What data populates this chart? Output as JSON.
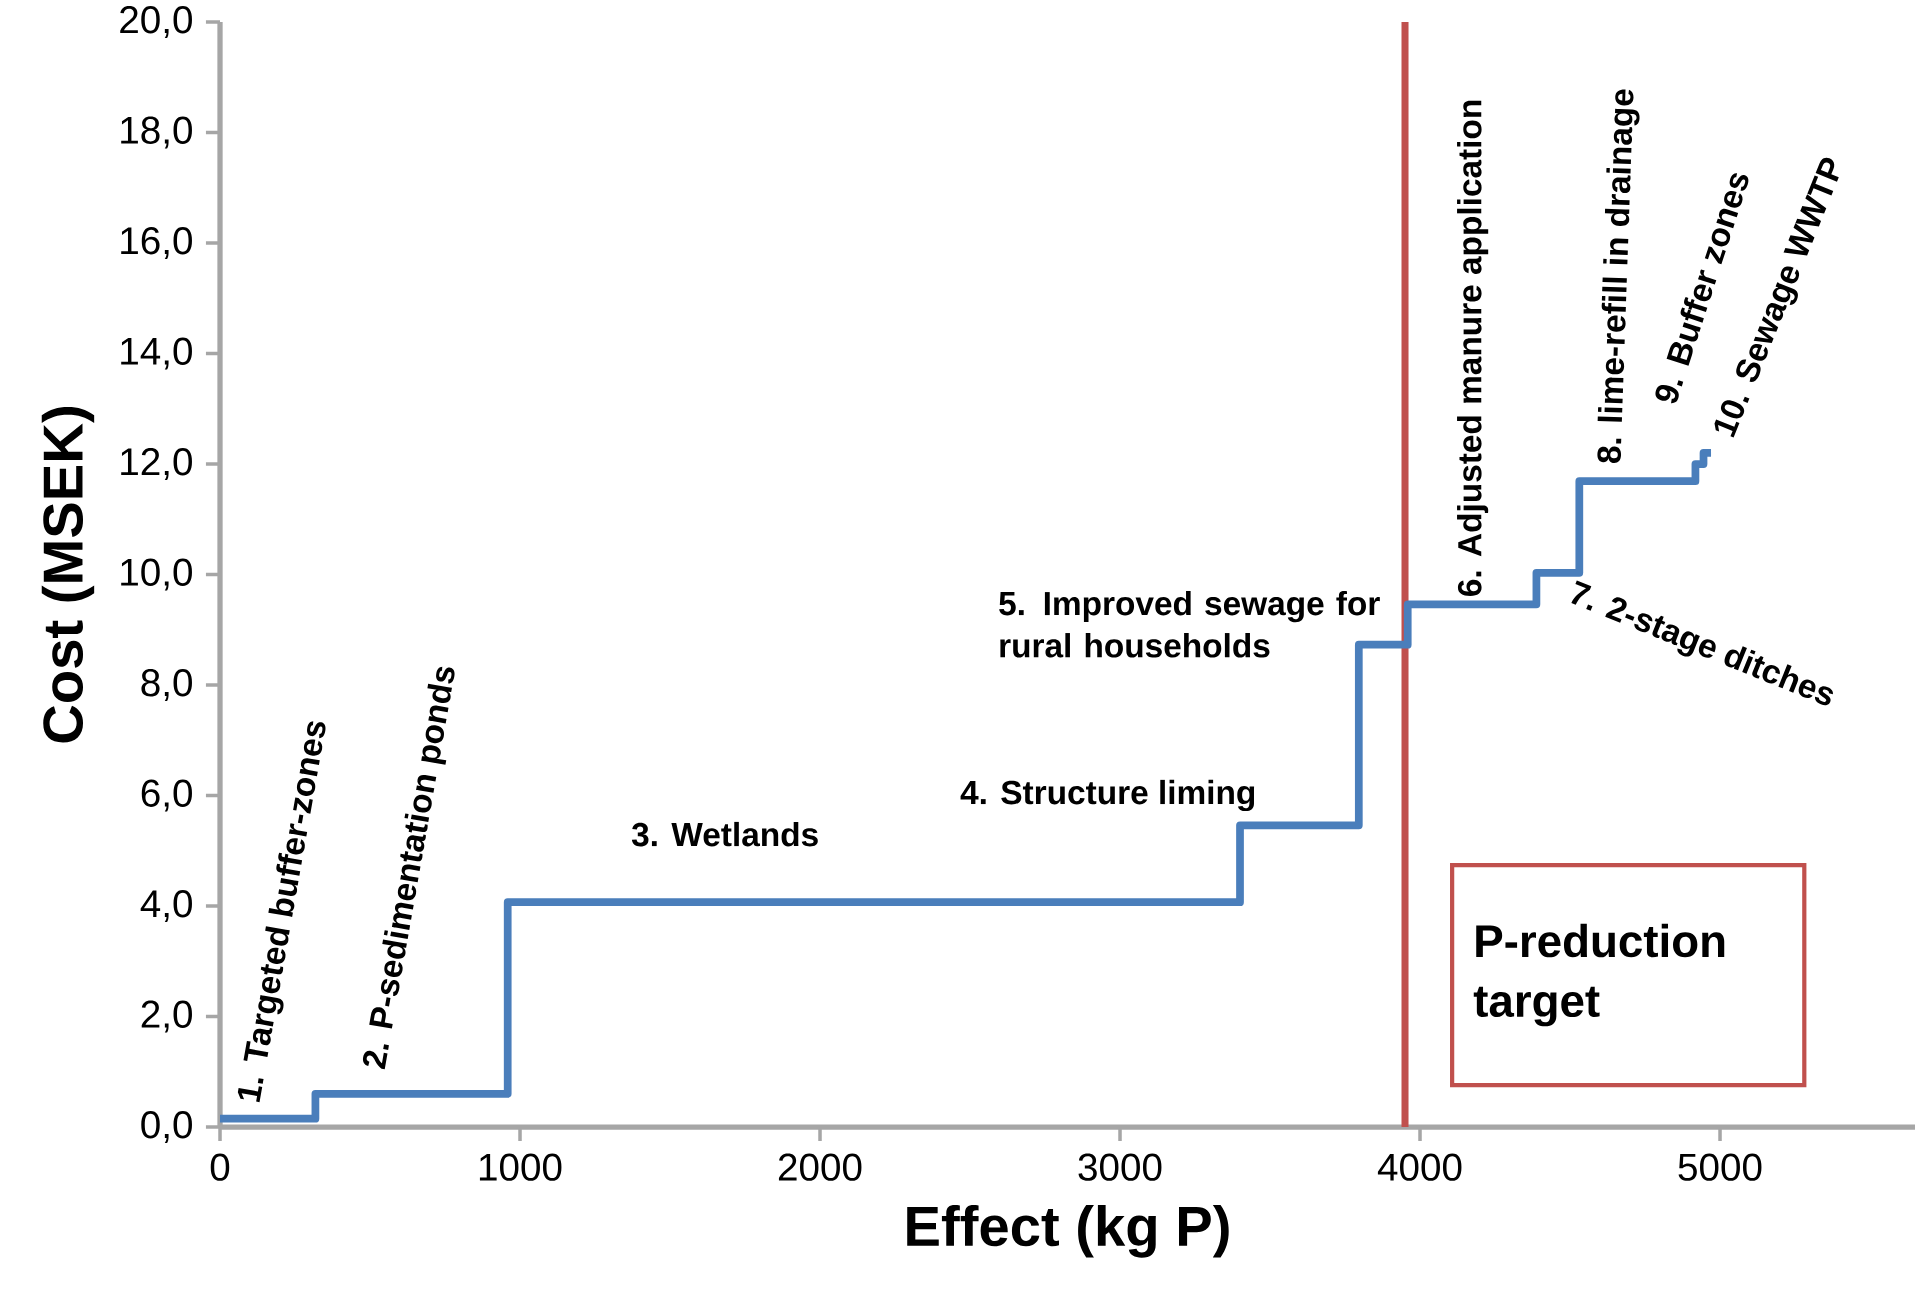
{
  "chart_data": {
    "type": "step",
    "xlabel": "Effect (kg P)",
    "ylabel": "Cost  (MSEK)",
    "x": [
      0,
      318,
      959,
      3400,
      3796,
      3959,
      4388,
      4531,
      4918,
      4945,
      4970
    ],
    "values": [
      0.15,
      0.6,
      4.07,
      5.46,
      8.73,
      9.46,
      10.03,
      11.69,
      12.0,
      12.2,
      12.2
    ],
    "color": "#4a7ebb",
    "xlim": [
      0,
      5650
    ],
    "xticks": [
      0,
      1000,
      2000,
      3000,
      4000,
      5000
    ],
    "ylim": [
      0,
      20
    ],
    "yticks": [
      {
        "value": 0,
        "label": "0,0"
      },
      {
        "value": 2,
        "label": "2,0"
      },
      {
        "value": 4,
        "label": "4,0"
      },
      {
        "value": 6,
        "label": "6,0"
      },
      {
        "value": 8,
        "label": "8,0"
      },
      {
        "value": 10,
        "label": "10,0"
      },
      {
        "value": 12,
        "label": "12,0"
      },
      {
        "value": 14,
        "label": "14,0"
      },
      {
        "value": 16,
        "label": "16,0"
      },
      {
        "value": 18,
        "label": "18,0"
      },
      {
        "value": 20,
        "label": "20,0"
      }
    ],
    "ref_lines": [
      {
        "axis": "x",
        "value": 3950,
        "label": "P-reduction target",
        "color": "#c0504d"
      }
    ],
    "annotations": [
      "1. Targeted buffer-zones",
      "2. P-sedimentation ponds",
      "3. Wetlands",
      "4. Structure liming",
      "5. Improved sewage for rural households",
      "6. Adjusted manure application",
      "7. 2-stage ditches",
      "8. lime-refill in drainage",
      "9. Buffer zones",
      "10. Sewage WWTP"
    ]
  }
}
